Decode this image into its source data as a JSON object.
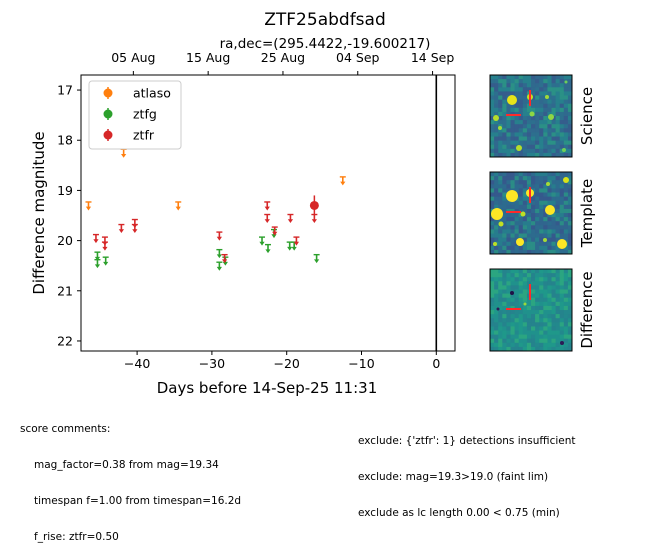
{
  "chart_data": {
    "type": "scatter",
    "title": "ZTF25abdfsad",
    "subtitle": "ra,dec=(295.4422,-19.600217)",
    "xlabel": "Days before 14-Sep-25 11:31",
    "ylabel": "Difference magnitude",
    "xlim": [
      -47.5,
      2.5
    ],
    "ylim": [
      22.2,
      16.7
    ],
    "y_inverted": true,
    "x_ticks": [
      -40,
      -30,
      -20,
      -10,
      0
    ],
    "x_tick_labels": [
      "−40",
      "−30",
      "−20",
      "−10",
      "0"
    ],
    "y_ticks": [
      17,
      18,
      19,
      20,
      21,
      22
    ],
    "y_tick_labels": [
      "17",
      "18",
      "19",
      "20",
      "21",
      "22"
    ],
    "top_axis_ticks": [
      -40.5,
      -30.5,
      -20.5,
      -10.5,
      -0.5
    ],
    "top_axis_labels": [
      "05 Aug",
      "15 Aug",
      "25 Aug",
      "04 Sep",
      "14 Sep"
    ],
    "vertical_line_x": 0,
    "legend": {
      "position": "top-left",
      "entries": [
        "atlaso",
        "ztfg",
        "ztfr"
      ]
    },
    "series": [
      {
        "name": "atlaso",
        "color": "#ff7f0e",
        "detections": [],
        "upper_limits": [
          {
            "x": -46.5,
            "y": 19.3
          },
          {
            "x": -41.8,
            "y": 18.25
          },
          {
            "x": -34.5,
            "y": 19.3
          },
          {
            "x": -12.5,
            "y": 18.8
          }
        ]
      },
      {
        "name": "ztfg",
        "color": "#2ca02c",
        "detections": [],
        "upper_limits": [
          {
            "x": -45.3,
            "y": 20.3
          },
          {
            "x": -45.3,
            "y": 20.45
          },
          {
            "x": -44.2,
            "y": 20.4
          },
          {
            "x": -29.0,
            "y": 20.25
          },
          {
            "x": -29.0,
            "y": 20.5
          },
          {
            "x": -28.2,
            "y": 20.4
          },
          {
            "x": -23.3,
            "y": 20.0
          },
          {
            "x": -22.5,
            "y": 20.15
          },
          {
            "x": -21.7,
            "y": 19.85
          },
          {
            "x": -19.6,
            "y": 20.1
          },
          {
            "x": -19.0,
            "y": 20.1
          },
          {
            "x": -16.0,
            "y": 20.35
          }
        ]
      },
      {
        "name": "ztfr",
        "color": "#d62728",
        "detections": [
          {
            "x": -16.3,
            "y": 19.3,
            "err": 0.2
          }
        ],
        "upper_limits": [
          {
            "x": -45.5,
            "y": 19.95
          },
          {
            "x": -44.3,
            "y": 20.0
          },
          {
            "x": -44.3,
            "y": 20.1
          },
          {
            "x": -42.1,
            "y": 19.75
          },
          {
            "x": -40.3,
            "y": 19.65
          },
          {
            "x": -40.3,
            "y": 19.75
          },
          {
            "x": -29.0,
            "y": 19.9
          },
          {
            "x": -28.3,
            "y": 20.35
          },
          {
            "x": -22.6,
            "y": 19.3
          },
          {
            "x": -22.6,
            "y": 19.55
          },
          {
            "x": -21.6,
            "y": 19.8
          },
          {
            "x": -19.5,
            "y": 19.55
          },
          {
            "x": -18.7,
            "y": 20.0
          },
          {
            "x": -16.3,
            "y": 19.55
          }
        ]
      }
    ]
  },
  "cutouts": [
    {
      "label": "Science"
    },
    {
      "label": "Template"
    },
    {
      "label": "Difference"
    }
  ],
  "comments_left": {
    "heading": "score comments:",
    "lines": [
      "mag_factor=0.38 from mag=19.34",
      "timespan f=1.00 from timespan=16.2d",
      "f_rise: ztfr=0.50"
    ]
  },
  "comments_right": {
    "lines": [
      "exclude: {'ztfr': 1} detections insufficient",
      "exclude: mag=19.3>19.0 (faint lim)",
      "exclude as lc length 0.00 < 0.75 (min)"
    ]
  }
}
